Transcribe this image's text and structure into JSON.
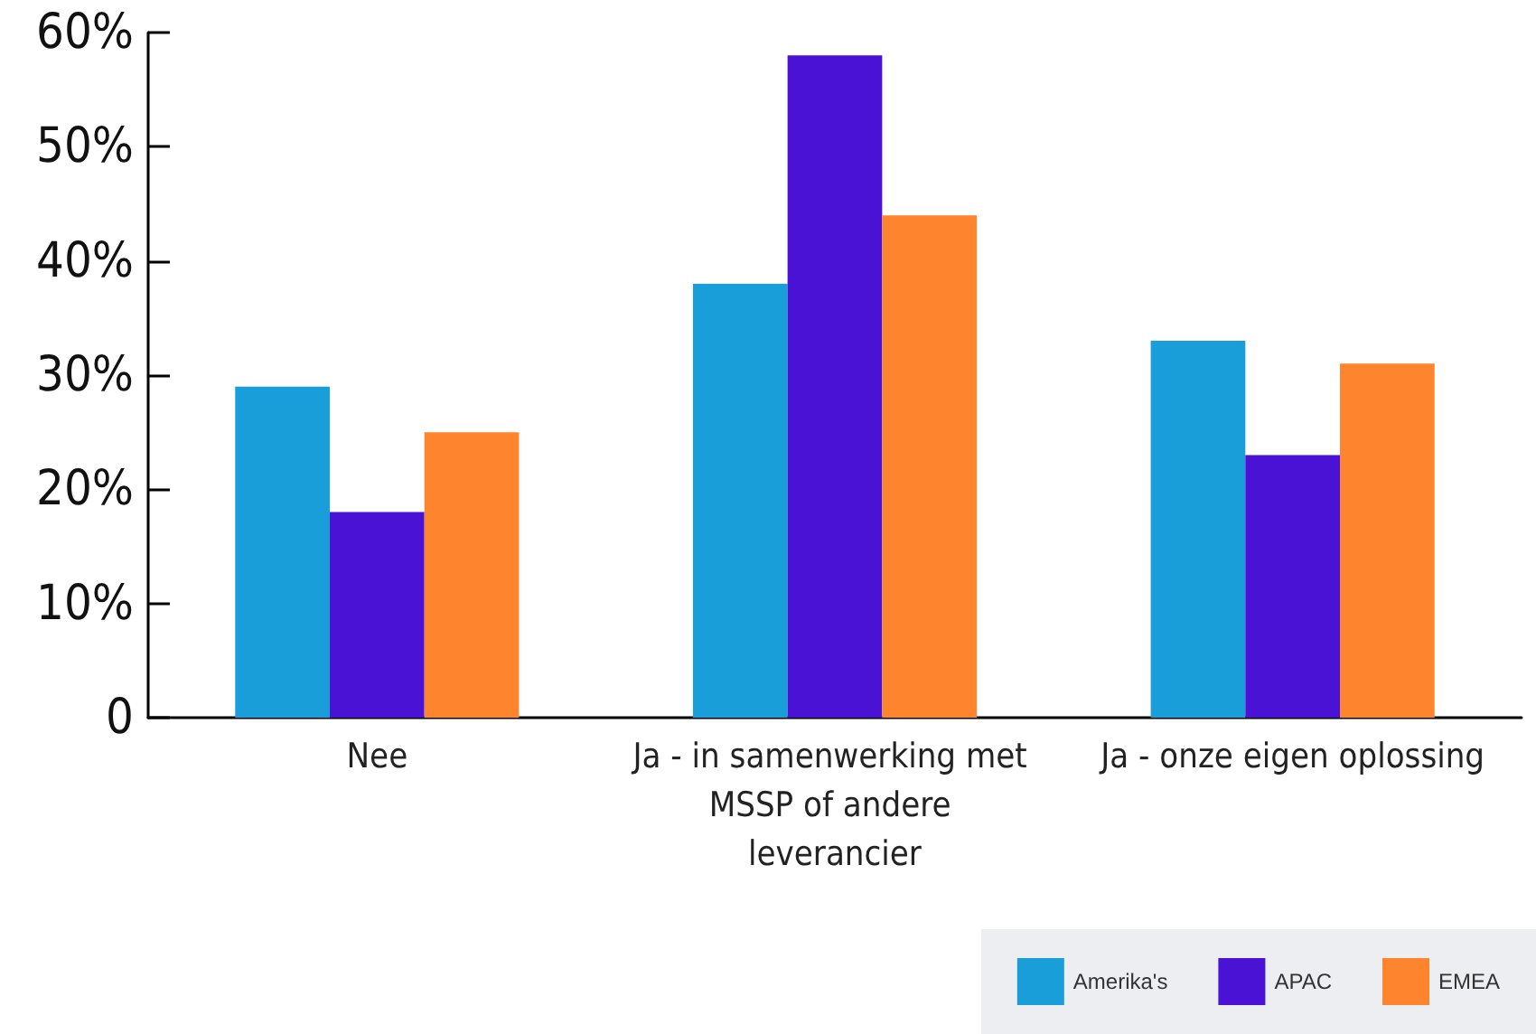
{
  "chart_data": {
    "type": "bar",
    "categories": [
      "Nee",
      "Ja - in samenwerking met MSSP of andere leverancier",
      "Ja - onze eigen oplossing"
    ],
    "series": [
      {
        "name": "Amerika's",
        "color": "#1a9ed9",
        "values": [
          29,
          38,
          33
        ]
      },
      {
        "name": "APAC",
        "color": "#4a12d4",
        "values": [
          18,
          58,
          23
        ]
      },
      {
        "name": "EMEA",
        "color": "#fe842d",
        "values": [
          25,
          44,
          31
        ]
      }
    ],
    "ylim": [
      0,
      60
    ],
    "yticks": [
      0,
      {
        "value": 10,
        "label": "10%"
      },
      {
        "value": 20,
        "label": "20%"
      },
      {
        "value": 30,
        "label": "30%"
      },
      {
        "value": 40,
        "label": "40%"
      },
      {
        "value": 50,
        "label": "50%"
      },
      {
        "value": 60,
        "label": "60%"
      }
    ],
    "grid": false,
    "legend": "bottom right"
  }
}
